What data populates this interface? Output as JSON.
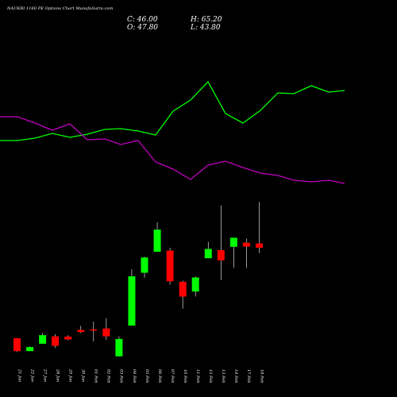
{
  "header": {
    "title": "NAUKRI 1160 PE Options Chart MunafaSutra.com",
    "close_label": "C: 46.00",
    "high_label": "H: 65.20",
    "open_label": "O: 47.80",
    "low_label": "L: 43.80"
  },
  "colors": {
    "background": "#000000",
    "bullish": "#00ff00",
    "bearish": "#ff0000",
    "green_line": "#00ff00",
    "magenta_line": "#c000c0",
    "wick": "#ffffff",
    "text": "#ffffff"
  },
  "chart_data": {
    "type": "candlestick",
    "categories": [
      "21 Jan",
      "22 Jan",
      "27 Jan",
      "28 Jan",
      "29 Jan",
      "30 Jan",
      "01 Feb",
      "02 Feb",
      "03 Feb",
      "04 Feb",
      "05 Feb",
      "06 Feb",
      "07 Feb",
      "10 Feb",
      "11 Feb",
      "12 Feb",
      "13 Feb",
      "14 Feb",
      "17 Feb",
      "18 Feb"
    ],
    "candles": [
      {
        "o": 8.0,
        "h": 8.0,
        "l": 2.2,
        "c": 2.6
      },
      {
        "o": 2.6,
        "h": 4.6,
        "l": 2.6,
        "c": 4.3
      },
      {
        "o": 5.7,
        "h": 10.2,
        "l": 5.7,
        "c": 9.3
      },
      {
        "o": 8.8,
        "h": 9.7,
        "l": 4.0,
        "c": 4.8
      },
      {
        "o": 8.7,
        "h": 9.2,
        "l": 7.2,
        "c": 7.5
      },
      {
        "o": 11.5,
        "h": 13.2,
        "l": 10.2,
        "c": 10.6
      },
      {
        "o": 11.7,
        "h": 15.0,
        "l": 6.7,
        "c": 11.4
      },
      {
        "o": 12.1,
        "h": 16.4,
        "l": 7.3,
        "c": 8.8
      },
      {
        "o": 0.4,
        "h": 8.8,
        "l": 0.4,
        "c": 7.7
      },
      {
        "o": 13.3,
        "h": 37.0,
        "l": 13.3,
        "c": 34.0
      },
      {
        "o": 35.5,
        "h": 42.2,
        "l": 33.4,
        "c": 41.9
      },
      {
        "o": 44.3,
        "h": 56.7,
        "l": 44.3,
        "c": 53.6
      },
      {
        "o": 44.8,
        "h": 46.0,
        "l": 30.5,
        "c": 31.9
      },
      {
        "o": 31.7,
        "h": 32.2,
        "l": 20.4,
        "c": 25.5
      },
      {
        "o": 27.6,
        "h": 34.0,
        "l": 25.5,
        "c": 33.5
      },
      {
        "o": 41.6,
        "h": 48.5,
        "l": 41.6,
        "c": 45.5
      },
      {
        "o": 45.0,
        "h": 63.7,
        "l": 32.4,
        "c": 40.7
      },
      {
        "o": 46.4,
        "h": 49.9,
        "l": 37.6,
        "c": 50.2
      },
      {
        "o": 48.1,
        "h": 49.8,
        "l": 37.5,
        "c": 46.5
      },
      {
        "o": 47.8,
        "h": 65.2,
        "l": 43.8,
        "c": 46.0
      }
    ],
    "green_line": [
      177,
      177,
      174,
      168,
      173,
      169,
      163,
      162,
      165,
      170,
      140,
      126,
      103,
      143,
      155,
      139,
      117,
      118,
      108,
      116,
      114
    ],
    "magenta_line": [
      147,
      147,
      155,
      164,
      156,
      176,
      175,
      182,
      177,
      204,
      213,
      226,
      208,
      203,
      211,
      218,
      221,
      227,
      229,
      227,
      231
    ],
    "line_x": [
      0,
      22,
      44,
      66,
      88,
      110,
      132,
      152,
      174,
      196,
      218,
      240,
      262,
      284,
      306,
      328,
      350,
      370,
      392,
      414,
      434
    ],
    "xlim": [
      0,
      434
    ],
    "overlay_ylim": [
      0,
      500
    ],
    "price_ylim": [
      0,
      70
    ],
    "grid": false,
    "legend": "none"
  }
}
